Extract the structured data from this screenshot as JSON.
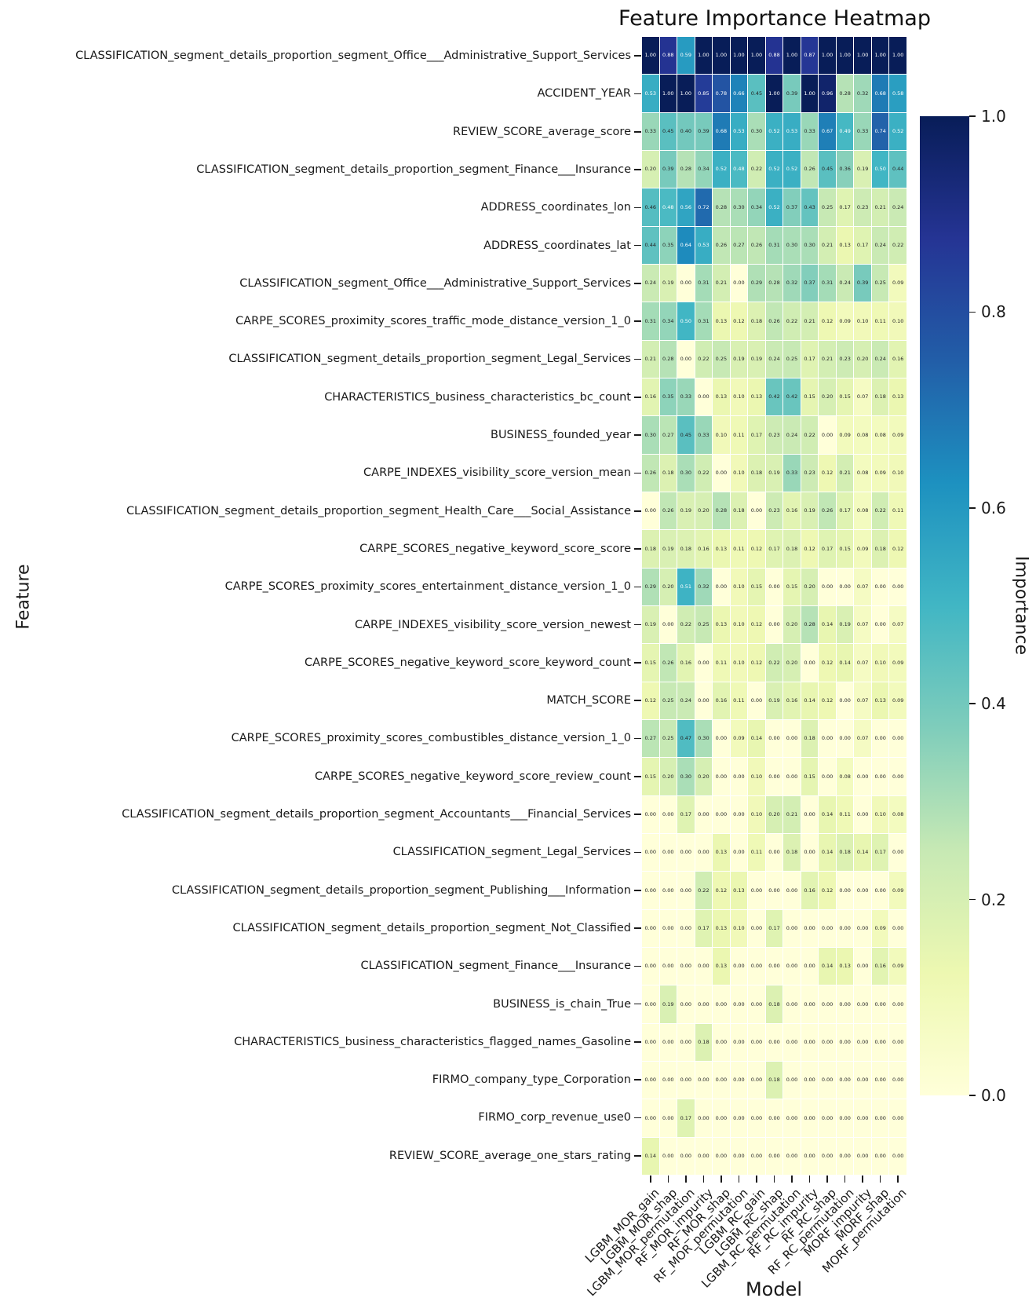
{
  "title": "Feature Importance Heatmap",
  "xlabel": "Model",
  "ylabel": "Feature",
  "colorbar": {
    "label": "Importance",
    "ticks": [
      1.0,
      0.8,
      0.6,
      0.4,
      0.2,
      0.0
    ]
  },
  "chart_data": {
    "type": "heatmap",
    "title": "Feature Importance Heatmap",
    "xlabel": "Model",
    "ylabel": "Feature",
    "colorbar_label": "Importance",
    "vmin": 0.0,
    "vmax": 1.0,
    "annotation_decimals": 2,
    "grid": false,
    "colormap": "YlGnBu",
    "colormap_stops": [
      "#ffffd9",
      "#edf8b1",
      "#c7e9b4",
      "#7fcdbb",
      "#41b6c4",
      "#1d91c0",
      "#225ea8",
      "#253494",
      "#081d58"
    ],
    "annotation_dark_text_color": "#262626",
    "annotation_light_text_color": "#ffffff",
    "columns": [
      "LGBM_MOR_gain",
      "LGBM_MOR_shap",
      "LGBM_MOR_permutation",
      "RF_MOR_impurity",
      "RF_MOR_shap",
      "RF_MOR_permutation",
      "LGBM_RC_gain",
      "LGBM_RC_shap",
      "LGBM_RC_permutation",
      "RF_RC_impurity",
      "RF_RC_shap",
      "RF_RC_permutation",
      "MORF_impurity",
      "MORF_shap",
      "MORF_permutation"
    ],
    "rows": [
      "CLASSIFICATION_segment_details_proportion_segment_Office___Administrative_Support_Services",
      "ACCIDENT_YEAR",
      "REVIEW_SCORE_average_score",
      "CLASSIFICATION_segment_details_proportion_segment_Finance___Insurance",
      "ADDRESS_coordinates_lon",
      "ADDRESS_coordinates_lat",
      "CLASSIFICATION_segment_Office___Administrative_Support_Services",
      "CARPE_SCORES_proximity_scores_traffic_mode_distance_version_1_0",
      "CLASSIFICATION_segment_details_proportion_segment_Legal_Services",
      "CHARACTERISTICS_business_characteristics_bc_count",
      "BUSINESS_founded_year",
      "CARPE_INDEXES_visibility_score_version_mean",
      "CLASSIFICATION_segment_details_proportion_segment_Health_Care___Social_Assistance",
      "CARPE_SCORES_negative_keyword_score_score",
      "CARPE_SCORES_proximity_scores_entertainment_distance_version_1_0",
      "CARPE_INDEXES_visibility_score_version_newest",
      "CARPE_SCORES_negative_keyword_score_keyword_count",
      "MATCH_SCORE",
      "CARPE_SCORES_proximity_scores_combustibles_distance_version_1_0",
      "CARPE_SCORES_negative_keyword_score_review_count",
      "CLASSIFICATION_segment_details_proportion_segment_Accountants___Financial_Services",
      "CLASSIFICATION_segment_Legal_Services",
      "CLASSIFICATION_segment_details_proportion_segment_Publishing___Information",
      "CLASSIFICATION_segment_details_proportion_segment_Not_Classified",
      "CLASSIFICATION_segment_Finance___Insurance",
      "BUSINESS_is_chain_True",
      "CHARACTERISTICS_business_characteristics_flagged_names_Gasoline",
      "FIRMO_company_type_Corporation",
      "FIRMO_corp_revenue_use0",
      "REVIEW_SCORE_average_one_stars_rating"
    ],
    "values": [
      [
        1.0,
        0.88,
        0.59,
        1.0,
        1.0,
        1.0,
        1.0,
        0.88,
        1.0,
        0.87,
        1.0,
        1.0,
        1.0,
        1.0,
        1.0
      ],
      [
        0.53,
        1.0,
        1.0,
        0.85,
        0.78,
        0.66,
        0.45,
        1.0,
        0.39,
        1.0,
        0.96,
        0.28,
        0.32,
        0.68,
        0.58
      ],
      [
        0.33,
        0.45,
        0.4,
        0.39,
        0.68,
        0.53,
        0.3,
        0.52,
        0.53,
        0.33,
        0.67,
        0.49,
        0.33,
        0.74,
        0.52
      ],
      [
        0.2,
        0.39,
        0.28,
        0.34,
        0.52,
        0.48,
        0.22,
        0.52,
        0.52,
        0.26,
        0.45,
        0.36,
        0.19,
        0.5,
        0.44
      ],
      [
        0.46,
        0.48,
        0.56,
        0.72,
        0.28,
        0.3,
        0.34,
        0.52,
        0.37,
        0.43,
        0.25,
        0.17,
        0.23,
        0.21,
        0.24
      ],
      [
        0.44,
        0.35,
        0.64,
        0.53,
        0.26,
        0.27,
        0.26,
        0.31,
        0.3,
        0.3,
        0.21,
        0.13,
        0.17,
        0.24,
        0.22
      ],
      [
        0.24,
        0.19,
        0.0,
        0.31,
        0.21,
        0.0,
        0.29,
        0.28,
        0.32,
        0.37,
        0.31,
        0.24,
        0.39,
        0.25,
        0.09
      ],
      [
        0.31,
        0.34,
        0.5,
        0.31,
        0.13,
        0.12,
        0.18,
        0.26,
        0.22,
        0.21,
        0.12,
        0.09,
        0.1,
        0.11,
        0.1
      ],
      [
        0.21,
        0.28,
        0.0,
        0.22,
        0.25,
        0.19,
        0.19,
        0.24,
        0.25,
        0.17,
        0.21,
        0.23,
        0.2,
        0.24,
        0.16
      ],
      [
        0.16,
        0.35,
        0.33,
        0.0,
        0.13,
        0.1,
        0.13,
        0.42,
        0.42,
        0.15,
        0.2,
        0.15,
        0.07,
        0.18,
        0.13
      ],
      [
        0.3,
        0.27,
        0.45,
        0.33,
        0.1,
        0.11,
        0.17,
        0.23,
        0.24,
        0.22,
        0.0,
        0.09,
        0.08,
        0.08,
        0.09
      ],
      [
        0.26,
        0.18,
        0.3,
        0.22,
        0.0,
        0.1,
        0.18,
        0.19,
        0.33,
        0.23,
        0.12,
        0.21,
        0.08,
        0.09,
        0.1
      ],
      [
        0.0,
        0.26,
        0.19,
        0.2,
        0.28,
        0.18,
        0.0,
        0.23,
        0.16,
        0.19,
        0.26,
        0.17,
        0.08,
        0.22,
        0.11
      ],
      [
        0.18,
        0.19,
        0.18,
        0.16,
        0.13,
        0.11,
        0.12,
        0.17,
        0.18,
        0.12,
        0.17,
        0.15,
        0.09,
        0.18,
        0.12
      ],
      [
        0.29,
        0.2,
        0.51,
        0.32,
        0.0,
        0.1,
        0.15,
        0.0,
        0.15,
        0.2,
        0.0,
        0.0,
        0.07,
        0.0,
        0.0
      ],
      [
        0.19,
        0.0,
        0.22,
        0.25,
        0.13,
        0.1,
        0.12,
        0.0,
        0.2,
        0.28,
        0.14,
        0.19,
        0.07,
        0.0,
        0.07
      ],
      [
        0.15,
        0.26,
        0.16,
        0.0,
        0.11,
        0.1,
        0.12,
        0.22,
        0.2,
        0.0,
        0.12,
        0.14,
        0.07,
        0.1,
        0.09
      ],
      [
        0.12,
        0.25,
        0.24,
        0.0,
        0.16,
        0.11,
        0.0,
        0.19,
        0.16,
        0.14,
        0.12,
        0.0,
        0.07,
        0.13,
        0.09
      ],
      [
        0.27,
        0.25,
        0.47,
        0.3,
        0.0,
        0.09,
        0.14,
        0.0,
        0.0,
        0.18,
        0.0,
        0.0,
        0.07,
        0.0,
        0.0
      ],
      [
        0.15,
        0.2,
        0.3,
        0.2,
        0.0,
        0.0,
        0.1,
        0.0,
        0.0,
        0.15,
        0.0,
        0.08,
        0.0,
        0.0,
        0.0
      ],
      [
        0.0,
        0.0,
        0.17,
        0.0,
        0.0,
        0.0,
        0.1,
        0.2,
        0.21,
        0.0,
        0.14,
        0.11,
        0.0,
        0.1,
        0.08
      ],
      [
        0.0,
        0.0,
        0.0,
        0.0,
        0.13,
        0.0,
        0.11,
        0.0,
        0.18,
        0.0,
        0.14,
        0.18,
        0.14,
        0.17,
        0.0
      ],
      [
        0.0,
        0.0,
        0.0,
        0.22,
        0.12,
        0.13,
        0.0,
        0.0,
        0.0,
        0.16,
        0.12,
        0.0,
        0.0,
        0.0,
        0.09
      ],
      [
        0.0,
        0.0,
        0.0,
        0.17,
        0.13,
        0.1,
        0.0,
        0.17,
        0.0,
        0.0,
        0.0,
        0.0,
        0.0,
        0.09,
        0.0
      ],
      [
        0.0,
        0.0,
        0.0,
        0.0,
        0.13,
        0.0,
        0.0,
        0.0,
        0.0,
        0.0,
        0.14,
        0.13,
        0.0,
        0.16,
        0.09
      ],
      [
        0.0,
        0.19,
        0.0,
        0.0,
        0.0,
        0.0,
        0.0,
        0.18,
        0.0,
        0.0,
        0.0,
        0.0,
        0.0,
        0.0,
        0.0
      ],
      [
        0.0,
        0.0,
        0.0,
        0.18,
        0.0,
        0.0,
        0.0,
        0.0,
        0.0,
        0.0,
        0.0,
        0.0,
        0.0,
        0.0,
        0.0
      ],
      [
        0.0,
        0.0,
        0.0,
        0.0,
        0.0,
        0.0,
        0.0,
        0.18,
        0.0,
        0.0,
        0.0,
        0.0,
        0.0,
        0.0,
        0.0
      ],
      [
        0.0,
        0.0,
        0.17,
        0.0,
        0.0,
        0.0,
        0.0,
        0.0,
        0.0,
        0.0,
        0.0,
        0.0,
        0.0,
        0.0,
        0.0
      ],
      [
        0.14,
        0.0,
        0.0,
        0.0,
        0.0,
        0.0,
        0.0,
        0.0,
        0.0,
        0.0,
        0.0,
        0.0,
        0.0,
        0.0,
        0.0
      ]
    ]
  }
}
